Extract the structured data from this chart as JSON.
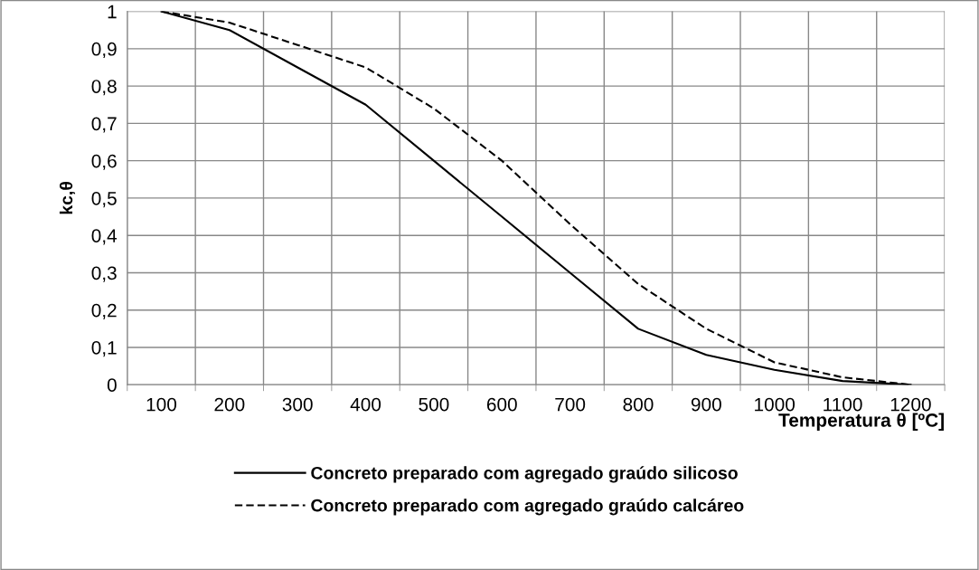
{
  "chart_data": {
    "type": "line",
    "xlabel": "Temperatura θ [ºC]",
    "ylabel": "kc,θ",
    "categories": [
      "100",
      "200",
      "300",
      "400",
      "500",
      "600",
      "700",
      "800",
      "900",
      "1000",
      "1100",
      "1200"
    ],
    "series": [
      {
        "name": "Concreto preparado com agregado graúdo silicoso",
        "color": "#000000",
        "line_style": "solid",
        "values": [
          1,
          0.95,
          0.85,
          0.75,
          0.6,
          0.45,
          0.3,
          0.15,
          0.08,
          0.04,
          0.01,
          0
        ]
      },
      {
        "name": "Concreto preparado com agregado graúdo calcáreo",
        "color": "#000000",
        "line_style": "dashed",
        "values": [
          1,
          0.97,
          0.91,
          0.85,
          0.74,
          0.6,
          0.43,
          0.27,
          0.15,
          0.06,
          0.02,
          0
        ]
      }
    ],
    "ylim": [
      0,
      1
    ],
    "yticks": [
      0,
      {
        "value": 0.1,
        "label": "0,1"
      },
      {
        "value": 0.2,
        "label": "0,2"
      },
      {
        "value": 0.3,
        "label": "0,3"
      },
      {
        "value": 0.4,
        "label": "0,4"
      },
      {
        "value": 0.5,
        "label": "0,5"
      },
      {
        "value": 0.6,
        "label": "0,6"
      },
      {
        "value": 0.7,
        "label": "0,7"
      },
      {
        "value": 0.8,
        "label": "0,8"
      },
      {
        "value": 0.9,
        "label": "0,9"
      },
      1
    ],
    "grid": true,
    "legend": "bottom",
    "marker": "none"
  }
}
